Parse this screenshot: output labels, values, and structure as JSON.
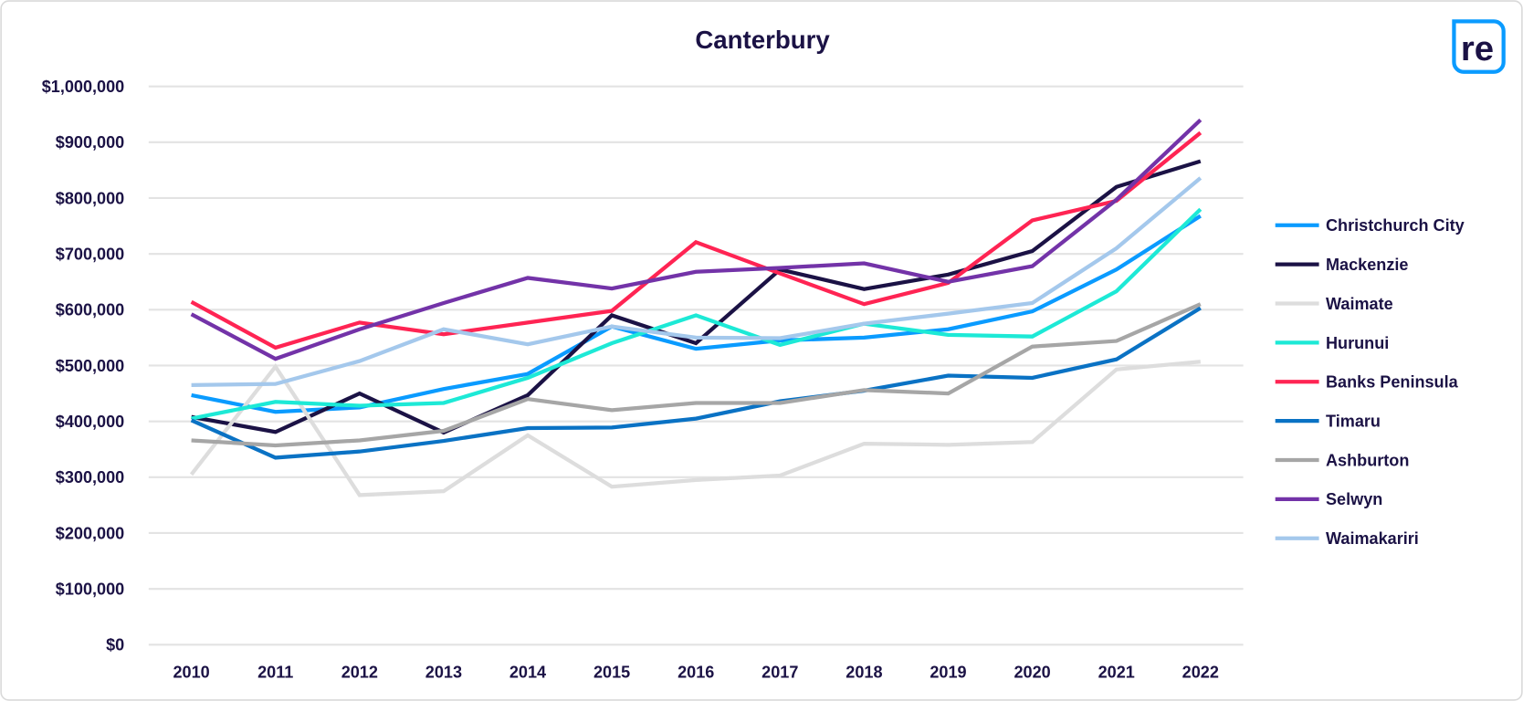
{
  "chart_data": {
    "type": "line",
    "title": "Canterbury",
    "xlabel": "",
    "ylabel": "",
    "ylim": [
      0,
      1000000
    ],
    "yticks": [
      "$0",
      "$100,000",
      "$200,000",
      "$300,000",
      "$400,000",
      "$500,000",
      "$600,000",
      "$700,000",
      "$800,000",
      "$900,000",
      "$1,000,000"
    ],
    "grid": true,
    "legend_position": "right",
    "categories": [
      "2010",
      "2011",
      "2012",
      "2013",
      "2014",
      "2015",
      "2016",
      "2017",
      "2018",
      "2019",
      "2020",
      "2021",
      "2022"
    ],
    "series": [
      {
        "name": "Christchurch City",
        "color": "#0a9bff",
        "values": [
          447000,
          417000,
          425000,
          458000,
          485000,
          570000,
          530000,
          545000,
          550000,
          565000,
          597000,
          672000,
          768000
        ]
      },
      {
        "name": "Mackenzie",
        "color": "#1b1245",
        "values": [
          408000,
          381000,
          450000,
          380000,
          447000,
          590000,
          540000,
          672000,
          637000,
          663000,
          705000,
          820000,
          866000
        ]
      },
      {
        "name": "Waimate",
        "color": "#dddddd",
        "values": [
          305000,
          498000,
          268000,
          275000,
          375000,
          283000,
          295000,
          303000,
          360000,
          358000,
          363000,
          493000,
          507000
        ]
      },
      {
        "name": "Hurunui",
        "color": "#1de9d6",
        "values": [
          405000,
          435000,
          428000,
          433000,
          478000,
          540000,
          590000,
          537000,
          575000,
          555000,
          552000,
          633000,
          780000
        ]
      },
      {
        "name": "Banks Peninsula",
        "color": "#ff2453",
        "values": [
          614000,
          532000,
          577000,
          556000,
          577000,
          598000,
          721000,
          665000,
          610000,
          648000,
          760000,
          795000,
          917000
        ]
      },
      {
        "name": "Timaru",
        "color": "#0a72c4",
        "values": [
          402000,
          335000,
          346000,
          365000,
          388000,
          389000,
          405000,
          436000,
          455000,
          482000,
          478000,
          511000,
          603000
        ]
      },
      {
        "name": "Ashburton",
        "color": "#a6a6a6",
        "values": [
          366000,
          357000,
          366000,
          383000,
          440000,
          420000,
          433000,
          433000,
          456000,
          450000,
          534000,
          544000,
          610000
        ]
      },
      {
        "name": "Selwyn",
        "color": "#7333a8",
        "values": [
          592000,
          512000,
          565000,
          612000,
          657000,
          638000,
          668000,
          675000,
          683000,
          650000,
          678000,
          797000,
          940000
        ]
      },
      {
        "name": "Waimakariri",
        "color": "#a4c8ec",
        "values": [
          465000,
          467000,
          508000,
          565000,
          538000,
          570000,
          550000,
          549000,
          575000,
          593000,
          612000,
          710000,
          836000
        ]
      }
    ]
  },
  "logo": {
    "text": "re",
    "color": "#0a9bff"
  }
}
